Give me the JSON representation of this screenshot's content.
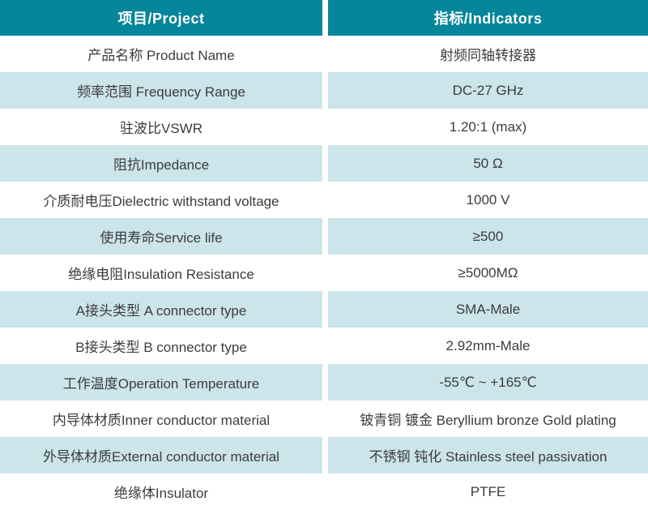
{
  "colors": {
    "header_bg": "#06869a",
    "header_text": "#ffffff",
    "row_alt_bg": "#cbe5ea",
    "row_bg": "#ffffff",
    "body_text": "#3c3c3c"
  },
  "header": {
    "project": "项目/Project",
    "indicators": "指标/Indicators"
  },
  "rows": [
    {
      "project": "产品名称 Product Name",
      "indicator": "射频同轴转接器"
    },
    {
      "project": "频率范围 Frequency Range",
      "indicator": "DC-27 GHz"
    },
    {
      "project": "驻波比VSWR",
      "indicator": "1.20:1 (max)"
    },
    {
      "project": "阻抗Impedance",
      "indicator": "50 Ω"
    },
    {
      "project": "介质耐电压Dielectric withstand voltage",
      "indicator": "1000 V"
    },
    {
      "project": "使用寿命Service life",
      "indicator": "≥500"
    },
    {
      "project": "绝缘电阻Insulation Resistance",
      "indicator": "≥5000MΩ"
    },
    {
      "project": "A接头类型 A connector type",
      "indicator": "SMA-Male"
    },
    {
      "project": "B接头类型 B connector type",
      "indicator": "2.92mm-Male"
    },
    {
      "project": "工作温度Operation Temperature",
      "indicator": "-55℃ ~ +165℃"
    },
    {
      "project": "内导体材质Inner conductor material",
      "indicator": "铍青铜 镀金 Beryllium bronze Gold plating"
    },
    {
      "project": "外导体材质External conductor material",
      "indicator": "不锈钢 钝化 Stainless steel passivation"
    },
    {
      "project": "绝缘体Insulator",
      "indicator": "PTFE"
    }
  ]
}
